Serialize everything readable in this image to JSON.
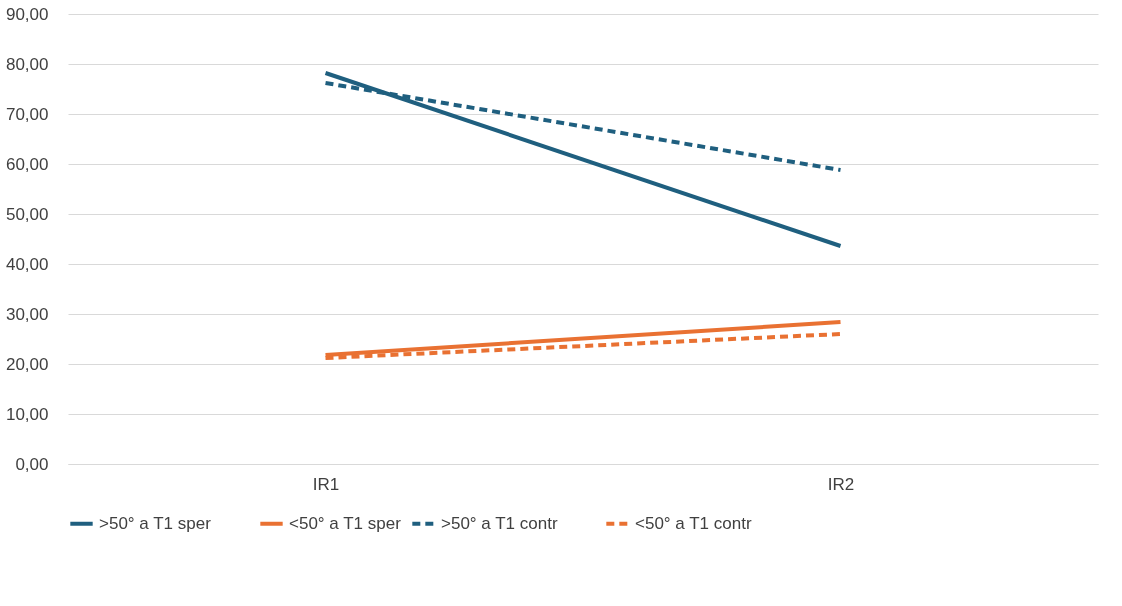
{
  "chart_data": {
    "type": "line",
    "categories": [
      "IR1",
      "IR2"
    ],
    "series": [
      {
        "name": ">50° a T1 sper",
        "color": "#1f5f7f",
        "line_style": "solid",
        "values": [
          78.2,
          43.6
        ]
      },
      {
        "name": "<50° a T1 sper",
        "color": "#e97132",
        "line_style": "solid",
        "values": [
          21.8,
          28.4
        ]
      },
      {
        "name": ">50° a T1 contr",
        "color": "#1f5f7f",
        "line_style": "dashed",
        "values": [
          76.2,
          58.8
        ]
      },
      {
        "name": "<50° a T1 contr",
        "color": "#e97132",
        "line_style": "dashed",
        "values": [
          21.2,
          26.0
        ]
      }
    ],
    "ylim": [
      0,
      90
    ],
    "yticks": [
      {
        "value": 0,
        "label": "0,00"
      },
      {
        "value": 10,
        "label": "10,00"
      },
      {
        "value": 20,
        "label": "20,00"
      },
      {
        "value": 30,
        "label": "30,00"
      },
      {
        "value": 40,
        "label": "40,00"
      },
      {
        "value": 50,
        "label": "50,00"
      },
      {
        "value": 60,
        "label": "60,00"
      },
      {
        "value": 70,
        "label": "70,00"
      },
      {
        "value": 80,
        "label": "80,00"
      },
      {
        "value": 90,
        "label": "90,00"
      }
    ],
    "grid": "y",
    "legend": "bottom",
    "marker": "none"
  }
}
